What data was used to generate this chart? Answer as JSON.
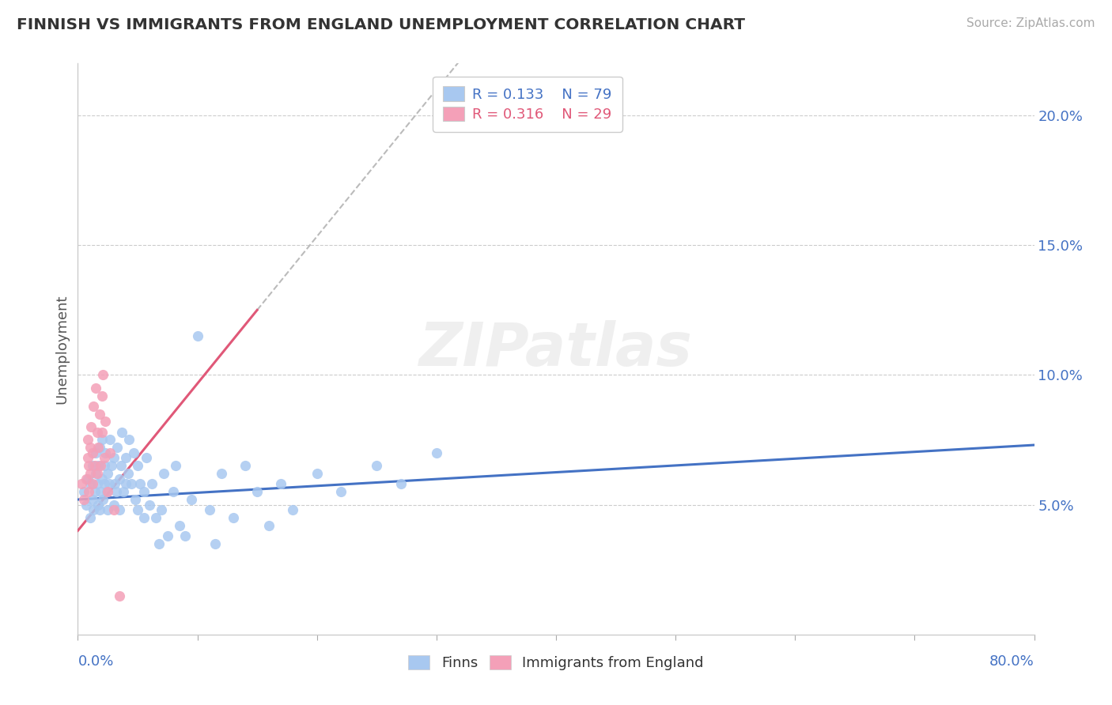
{
  "title": "FINNISH VS IMMIGRANTS FROM ENGLAND UNEMPLOYMENT CORRELATION CHART",
  "source": "Source: ZipAtlas.com",
  "ylabel": "Unemployment",
  "ylim": [
    0.0,
    0.22
  ],
  "xlim": [
    0.0,
    0.8
  ],
  "yticks": [
    0.05,
    0.1,
    0.15,
    0.2
  ],
  "ytick_labels": [
    "5.0%",
    "10.0%",
    "15.0%",
    "20.0%"
  ],
  "xticks": [
    0.0,
    0.1,
    0.2,
    0.3,
    0.4,
    0.5,
    0.6,
    0.7,
    0.8
  ],
  "legend_r1": "R = 0.133",
  "legend_n1": "N = 79",
  "legend_r2": "R = 0.316",
  "legend_n2": "N = 29",
  "color_finns": "#A8C8F0",
  "color_england": "#F4A0B8",
  "color_trend_finns": "#4472C4",
  "color_trend_england": "#E05878",
  "finns_x": [
    0.005,
    0.007,
    0.008,
    0.01,
    0.01,
    0.012,
    0.012,
    0.013,
    0.014,
    0.015,
    0.015,
    0.016,
    0.017,
    0.017,
    0.018,
    0.018,
    0.019,
    0.02,
    0.02,
    0.021,
    0.022,
    0.022,
    0.023,
    0.024,
    0.025,
    0.025,
    0.026,
    0.027,
    0.028,
    0.03,
    0.03,
    0.031,
    0.032,
    0.033,
    0.035,
    0.035,
    0.036,
    0.037,
    0.038,
    0.04,
    0.04,
    0.042,
    0.043,
    0.045,
    0.047,
    0.048,
    0.05,
    0.05,
    0.052,
    0.055,
    0.055,
    0.057,
    0.06,
    0.062,
    0.065,
    0.068,
    0.07,
    0.072,
    0.075,
    0.08,
    0.082,
    0.085,
    0.09,
    0.095,
    0.1,
    0.11,
    0.115,
    0.12,
    0.13,
    0.14,
    0.15,
    0.16,
    0.17,
    0.18,
    0.2,
    0.22,
    0.25,
    0.27,
    0.3
  ],
  "finns_y": [
    0.055,
    0.05,
    0.06,
    0.045,
    0.058,
    0.052,
    0.065,
    0.048,
    0.055,
    0.062,
    0.07,
    0.058,
    0.05,
    0.065,
    0.048,
    0.072,
    0.055,
    0.06,
    0.075,
    0.052,
    0.065,
    0.058,
    0.07,
    0.055,
    0.048,
    0.062,
    0.058,
    0.075,
    0.065,
    0.05,
    0.068,
    0.058,
    0.055,
    0.072,
    0.06,
    0.048,
    0.065,
    0.078,
    0.055,
    0.058,
    0.068,
    0.062,
    0.075,
    0.058,
    0.07,
    0.052,
    0.048,
    0.065,
    0.058,
    0.045,
    0.055,
    0.068,
    0.05,
    0.058,
    0.045,
    0.035,
    0.048,
    0.062,
    0.038,
    0.055,
    0.065,
    0.042,
    0.038,
    0.052,
    0.115,
    0.048,
    0.035,
    0.062,
    0.045,
    0.065,
    0.055,
    0.042,
    0.058,
    0.048,
    0.062,
    0.055,
    0.065,
    0.058,
    0.07
  ],
  "england_x": [
    0.003,
    0.005,
    0.007,
    0.008,
    0.008,
    0.009,
    0.009,
    0.01,
    0.01,
    0.011,
    0.012,
    0.012,
    0.013,
    0.014,
    0.015,
    0.016,
    0.016,
    0.017,
    0.018,
    0.019,
    0.02,
    0.02,
    0.021,
    0.022,
    0.023,
    0.025,
    0.027,
    0.03,
    0.035
  ],
  "england_y": [
    0.058,
    0.052,
    0.06,
    0.068,
    0.075,
    0.055,
    0.065,
    0.062,
    0.072,
    0.08,
    0.058,
    0.07,
    0.088,
    0.065,
    0.095,
    0.062,
    0.078,
    0.072,
    0.085,
    0.065,
    0.092,
    0.078,
    0.1,
    0.068,
    0.082,
    0.055,
    0.07,
    0.048,
    0.015
  ],
  "england_trend_x0": 0.0,
  "england_trend_x1": 0.15,
  "england_trend_y0": 0.04,
  "england_trend_y1": 0.125,
  "england_trend_dashed_x0": 0.15,
  "england_trend_dashed_x1": 0.5,
  "finns_trend_x0": 0.0,
  "finns_trend_x1": 0.8,
  "finns_trend_y0": 0.052,
  "finns_trend_y1": 0.073
}
